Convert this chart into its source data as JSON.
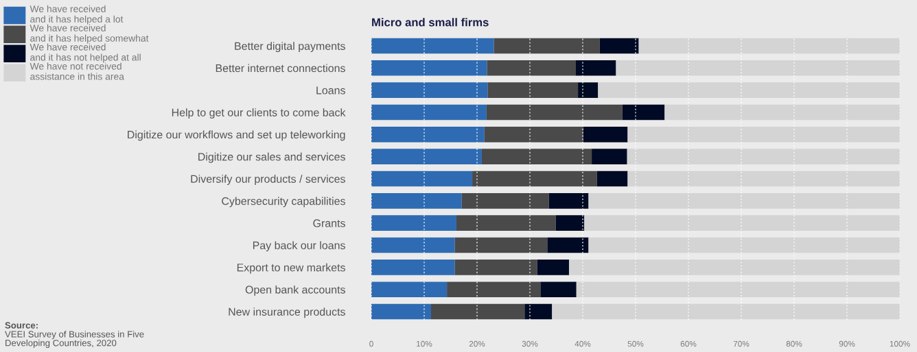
{
  "chart_data": {
    "type": "bar",
    "orientation": "horizontal",
    "stacked": true,
    "title": "Micro and small firms",
    "categories": [
      "Better digital payments",
      "Better internet connections",
      "Loans",
      "Help to get our clients to come back",
      "Digitize our workflows and set up teleworking",
      "Digitize our sales and services",
      "Diversify our products / services",
      "Cybersecurity capabilities",
      "Grants",
      "Pay back our loans",
      "Export to new markets",
      "Open bank accounts",
      "New insurance products"
    ],
    "series": [
      {
        "name": "We have received\nand it has helped a lot",
        "color": "#2e6bb3",
        "values": [
          23.2,
          21.9,
          22.0,
          21.8,
          21.4,
          20.9,
          19.1,
          17.1,
          16.1,
          15.8,
          15.8,
          14.3,
          11.3
        ]
      },
      {
        "name": "We have received\nand it has helped somewhat",
        "color": "#4a4a4a",
        "values": [
          20.0,
          16.8,
          17.1,
          25.7,
          18.7,
          20.8,
          23.6,
          16.5,
          18.8,
          17.5,
          15.6,
          17.7,
          17.7
        ]
      },
      {
        "name": "We have received\nand it has not helped at all",
        "color": "#000a24",
        "values": [
          7.4,
          7.6,
          3.8,
          8.0,
          8.4,
          6.7,
          5.8,
          7.5,
          5.4,
          7.8,
          6.0,
          6.8,
          5.2
        ]
      },
      {
        "name": "We have not received\nassistance in this area",
        "color": "#d4d4d4",
        "values": [
          49.4,
          53.7,
          57.1,
          44.5,
          51.5,
          51.6,
          51.5,
          58.9,
          59.7,
          58.9,
          62.6,
          61.2,
          65.8
        ]
      }
    ],
    "xlim": [
      0,
      100
    ],
    "xticks": [
      0,
      {
        "value": 10,
        "label": "10%"
      },
      {
        "value": 20,
        "label": "20%"
      },
      {
        "value": 30,
        "label": "30%"
      },
      {
        "value": 40,
        "label": "40%"
      },
      {
        "value": 50,
        "label": "50%"
      },
      {
        "value": 60,
        "label": "60%"
      },
      {
        "value": 70,
        "label": "70%"
      },
      {
        "value": 80,
        "label": "80%"
      },
      {
        "value": 90,
        "label": "90%"
      },
      {
        "value": 100,
        "label": "100%"
      }
    ],
    "grid": "x",
    "legend": "top left",
    "annotations": [
      "Source:",
      "VEEI Survey of Businesses in Five\nDeveloping Countries, 2020"
    ]
  }
}
